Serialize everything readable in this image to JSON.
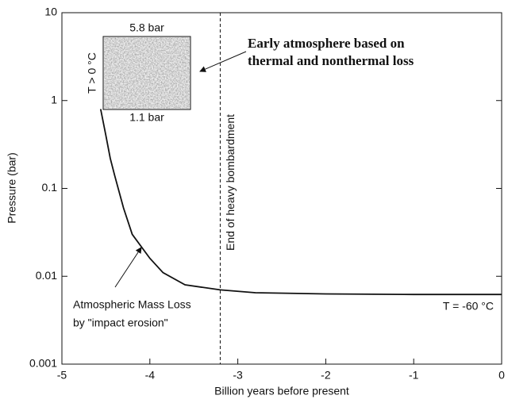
{
  "chart_data": {
    "type": "line",
    "x_label": "Billion years before present",
    "y_label": "Pressure (bar)",
    "x": [
      -4.56,
      -4.5,
      -4.45,
      -4.4,
      -4.3,
      -4.2,
      -4.0,
      -3.85,
      -3.6,
      -3.2,
      -2.8,
      -2,
      -1,
      0
    ],
    "series": [
      {
        "color": "#111111",
        "values": [
          0.8,
          0.4,
          0.22,
          0.14,
          0.06,
          0.03,
          0.016,
          0.011,
          0.008,
          0.007,
          0.0065,
          0.0063,
          0.0062,
          0.0062
        ]
      }
    ],
    "xlim": [
      -5,
      0
    ],
    "xticks": [
      -5,
      -4,
      -3,
      -2,
      -1,
      0
    ],
    "ylim": [
      0.001,
      10
    ],
    "yticks": [
      0.001,
      0.01,
      0.1,
      1,
      10
    ],
    "y_log": true,
    "reference_line": {
      "x": -3.2,
      "label": "End of heavy bombardment"
    },
    "inset": {
      "top_label": "5.8 bar",
      "bottom_label": "1.1 bar",
      "side_label": "T > 0 °C"
    },
    "annotations": {
      "early": [
        "Early atmosphere based on",
        "thermal and nonthermal loss"
      ],
      "loss": [
        "Atmospheric Mass Loss",
        "by \"impact erosion\""
      ],
      "final_temp": "T = -60 °C"
    }
  }
}
